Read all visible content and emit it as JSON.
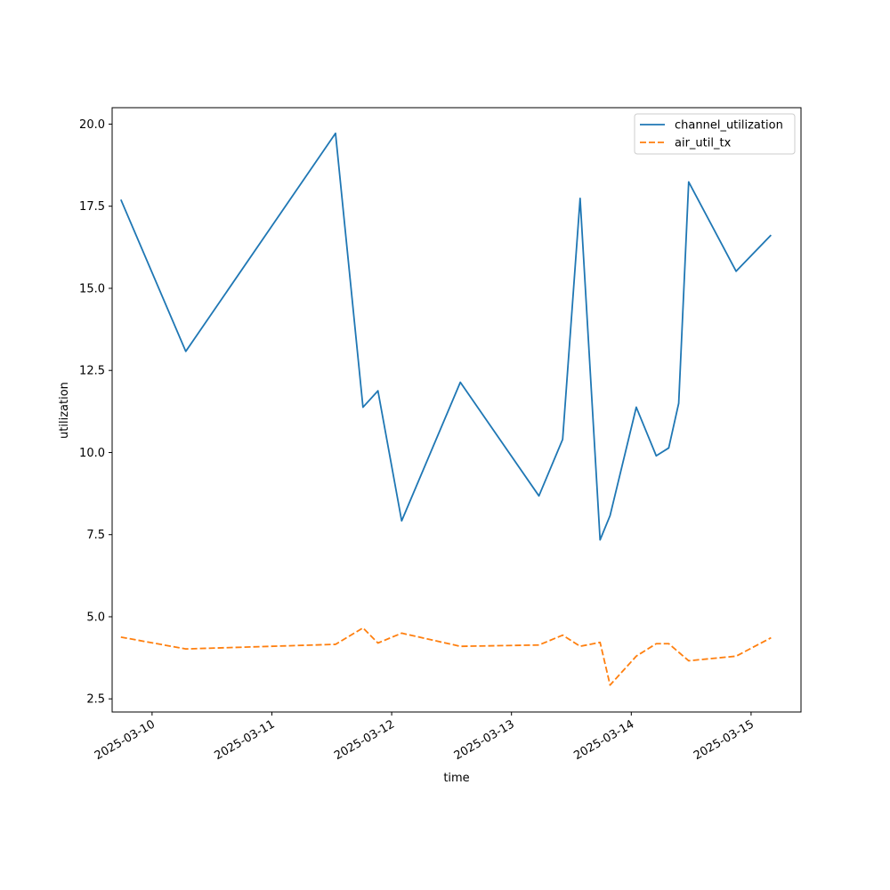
{
  "chart_data": {
    "type": "line",
    "title": "",
    "xlabel": "time",
    "ylabel": "utilization",
    "x_type": "datetime",
    "xlim": [
      "2025-03-09 16:00",
      "2025-03-15 10:00"
    ],
    "ylim": [
      2.1,
      20.5
    ],
    "x_ticks": [
      "2025-03-10",
      "2025-03-11",
      "2025-03-12",
      "2025-03-13",
      "2025-03-14",
      "2025-03-15"
    ],
    "y_ticks": [
      "2.5",
      "5.0",
      "7.5",
      "10.0",
      "12.5",
      "15.0",
      "17.5",
      "20.0"
    ],
    "grid": false,
    "legend_position": "top-right",
    "series": [
      {
        "name": "channel_utilization",
        "color": "#1f77b4",
        "style": "solid",
        "points": [
          [
            "2025-03-09 17:45",
            17.7
          ],
          [
            "2025-03-10 06:45",
            13.08
          ],
          [
            "2025-03-11 12:45",
            19.72
          ],
          [
            "2025-03-11 18:15",
            11.38
          ],
          [
            "2025-03-11 21:15",
            11.88
          ],
          [
            "2025-03-12 02:00",
            7.92
          ],
          [
            "2025-03-12 13:45",
            12.14
          ],
          [
            "2025-03-13 05:30",
            8.68
          ],
          [
            "2025-03-13 10:15",
            10.4
          ],
          [
            "2025-03-13 13:45",
            17.74
          ],
          [
            "2025-03-13 17:45",
            7.34
          ],
          [
            "2025-03-13 19:45",
            8.08
          ],
          [
            "2025-03-14 01:00",
            11.38
          ],
          [
            "2025-03-14 05:00",
            9.9
          ],
          [
            "2025-03-14 07:30",
            10.14
          ],
          [
            "2025-03-14 09:30",
            11.5
          ],
          [
            "2025-03-14 11:30",
            18.24
          ],
          [
            "2025-03-14 21:00",
            15.52
          ],
          [
            "2025-03-15 04:00",
            16.62
          ]
        ]
      },
      {
        "name": "air_util_tx",
        "color": "#ff7f0e",
        "style": "dashed",
        "points": [
          [
            "2025-03-09 17:45",
            4.38
          ],
          [
            "2025-03-10 06:45",
            4.02
          ],
          [
            "2025-03-11 12:45",
            4.16
          ],
          [
            "2025-03-11 18:15",
            4.66
          ],
          [
            "2025-03-11 21:15",
            4.2
          ],
          [
            "2025-03-12 02:00",
            4.5
          ],
          [
            "2025-03-12 13:45",
            4.1
          ],
          [
            "2025-03-13 05:30",
            4.14
          ],
          [
            "2025-03-13 10:15",
            4.44
          ],
          [
            "2025-03-13 13:45",
            4.1
          ],
          [
            "2025-03-13 17:45",
            4.22
          ],
          [
            "2025-03-13 19:45",
            2.92
          ],
          [
            "2025-03-14 01:00",
            3.8
          ],
          [
            "2025-03-14 05:00",
            4.18
          ],
          [
            "2025-03-14 07:30",
            4.18
          ],
          [
            "2025-03-14 11:30",
            3.66
          ],
          [
            "2025-03-14 21:00",
            3.8
          ],
          [
            "2025-03-15 04:00",
            4.36
          ]
        ]
      }
    ]
  }
}
